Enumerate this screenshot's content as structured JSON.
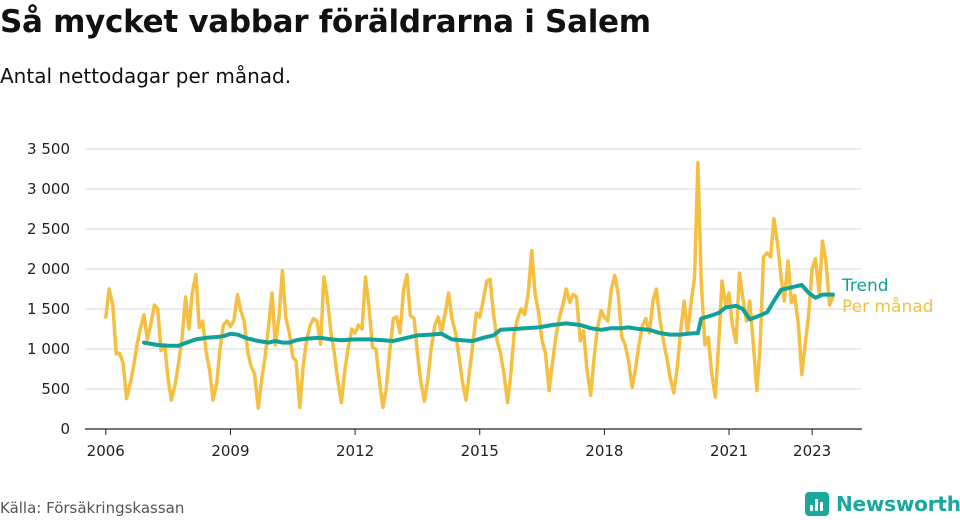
{
  "title": "Så mycket vabbar föräldrarna i Salem",
  "subtitle": "Antal nettodagar per månad.",
  "source": "Källa: Försäkringskassan",
  "brand": {
    "name": "Newsworthy",
    "icon": "newsworthy-logo-icon",
    "color": "#1aa79c"
  },
  "chart_data": {
    "type": "line",
    "title": "Så mycket vabbar föräldrarna i Salem",
    "subtitle": "Antal nettodagar per månad.",
    "xlabel": "",
    "ylabel": "",
    "x_range": [
      2005.5,
      2024.2
    ],
    "ylim": [
      0,
      3500
    ],
    "y_ticks": [
      0,
      500,
      1000,
      1500,
      2000,
      2500,
      3000,
      3500
    ],
    "y_tick_labels": [
      "0",
      "500",
      "1 000",
      "1 500",
      "2 000",
      "2 500",
      "3 000",
      "3 500"
    ],
    "x_ticks": [
      2006,
      2009,
      2012,
      2015,
      2018,
      2021,
      2023
    ],
    "x_tick_labels": [
      "2006",
      "2009",
      "2012",
      "2015",
      "2018",
      "2021",
      "2023"
    ],
    "grid": true,
    "legend": "right, labels at line ends",
    "series": [
      {
        "name": "Per månad",
        "color": "#f5c042",
        "points": [
          [
            2006.0,
            1400
          ],
          [
            2006.08,
            1750
          ],
          [
            2006.17,
            1550
          ],
          [
            2006.25,
            940
          ],
          [
            2006.33,
            950
          ],
          [
            2006.42,
            820
          ],
          [
            2006.5,
            380
          ],
          [
            2006.58,
            550
          ],
          [
            2006.67,
            780
          ],
          [
            2006.75,
            1050
          ],
          [
            2006.83,
            1250
          ],
          [
            2006.92,
            1430
          ],
          [
            2007.0,
            1120
          ],
          [
            2007.08,
            1300
          ],
          [
            2007.17,
            1550
          ],
          [
            2007.25,
            1500
          ],
          [
            2007.33,
            980
          ],
          [
            2007.42,
            1050
          ],
          [
            2007.5,
            620
          ],
          [
            2007.58,
            360
          ],
          [
            2007.67,
            560
          ],
          [
            2007.75,
            820
          ],
          [
            2007.83,
            1100
          ],
          [
            2007.92,
            1650
          ],
          [
            2008.0,
            1250
          ],
          [
            2008.08,
            1700
          ],
          [
            2008.17,
            1930
          ],
          [
            2008.25,
            1270
          ],
          [
            2008.33,
            1350
          ],
          [
            2008.42,
            950
          ],
          [
            2008.5,
            730
          ],
          [
            2008.58,
            360
          ],
          [
            2008.67,
            570
          ],
          [
            2008.75,
            1000
          ],
          [
            2008.83,
            1300
          ],
          [
            2008.92,
            1350
          ],
          [
            2009.0,
            1280
          ],
          [
            2009.08,
            1350
          ],
          [
            2009.17,
            1680
          ],
          [
            2009.25,
            1480
          ],
          [
            2009.33,
            1350
          ],
          [
            2009.42,
            950
          ],
          [
            2009.5,
            780
          ],
          [
            2009.58,
            690
          ],
          [
            2009.67,
            260
          ],
          [
            2009.75,
            620
          ],
          [
            2009.83,
            880
          ],
          [
            2009.92,
            1300
          ],
          [
            2010.0,
            1700
          ],
          [
            2010.08,
            1050
          ],
          [
            2010.17,
            1400
          ],
          [
            2010.25,
            1980
          ],
          [
            2010.33,
            1400
          ],
          [
            2010.42,
            1200
          ],
          [
            2010.5,
            900
          ],
          [
            2010.58,
            850
          ],
          [
            2010.67,
            270
          ],
          [
            2010.75,
            780
          ],
          [
            2010.83,
            1100
          ],
          [
            2010.92,
            1300
          ],
          [
            2011.0,
            1380
          ],
          [
            2011.08,
            1350
          ],
          [
            2011.17,
            1060
          ],
          [
            2011.25,
            1900
          ],
          [
            2011.33,
            1650
          ],
          [
            2011.42,
            1200
          ],
          [
            2011.5,
            950
          ],
          [
            2011.58,
            620
          ],
          [
            2011.67,
            330
          ],
          [
            2011.75,
            720
          ],
          [
            2011.83,
            1000
          ],
          [
            2011.92,
            1250
          ],
          [
            2012.0,
            1200
          ],
          [
            2012.08,
            1300
          ],
          [
            2012.17,
            1250
          ],
          [
            2012.25,
            1900
          ],
          [
            2012.33,
            1550
          ],
          [
            2012.42,
            1020
          ],
          [
            2012.5,
            1000
          ],
          [
            2012.58,
            620
          ],
          [
            2012.67,
            270
          ],
          [
            2012.75,
            500
          ],
          [
            2012.83,
            950
          ],
          [
            2012.92,
            1380
          ],
          [
            2013.0,
            1400
          ],
          [
            2013.08,
            1200
          ],
          [
            2013.17,
            1750
          ],
          [
            2013.25,
            1930
          ],
          [
            2013.33,
            1420
          ],
          [
            2013.42,
            1380
          ],
          [
            2013.5,
            950
          ],
          [
            2013.58,
            600
          ],
          [
            2013.67,
            350
          ],
          [
            2013.75,
            620
          ],
          [
            2013.83,
            1000
          ],
          [
            2013.92,
            1300
          ],
          [
            2014.0,
            1400
          ],
          [
            2014.08,
            1200
          ],
          [
            2014.17,
            1450
          ],
          [
            2014.25,
            1700
          ],
          [
            2014.33,
            1380
          ],
          [
            2014.42,
            1200
          ],
          [
            2014.5,
            900
          ],
          [
            2014.58,
            600
          ],
          [
            2014.67,
            360
          ],
          [
            2014.75,
            700
          ],
          [
            2014.83,
            1050
          ],
          [
            2014.92,
            1450
          ],
          [
            2015.0,
            1400
          ],
          [
            2015.08,
            1600
          ],
          [
            2015.17,
            1850
          ],
          [
            2015.25,
            1870
          ],
          [
            2015.33,
            1450
          ],
          [
            2015.42,
            1100
          ],
          [
            2015.5,
            950
          ],
          [
            2015.58,
            700
          ],
          [
            2015.67,
            330
          ],
          [
            2015.75,
            700
          ],
          [
            2015.83,
            1200
          ],
          [
            2015.92,
            1400
          ],
          [
            2016.0,
            1500
          ],
          [
            2016.08,
            1430
          ],
          [
            2016.17,
            1700
          ],
          [
            2016.25,
            2230
          ],
          [
            2016.33,
            1700
          ],
          [
            2016.42,
            1450
          ],
          [
            2016.5,
            1100
          ],
          [
            2016.58,
            950
          ],
          [
            2016.67,
            480
          ],
          [
            2016.75,
            820
          ],
          [
            2016.83,
            1150
          ],
          [
            2016.92,
            1400
          ],
          [
            2017.0,
            1550
          ],
          [
            2017.08,
            1750
          ],
          [
            2017.17,
            1580
          ],
          [
            2017.25,
            1680
          ],
          [
            2017.33,
            1650
          ],
          [
            2017.42,
            1100
          ],
          [
            2017.5,
            1230
          ],
          [
            2017.58,
            750
          ],
          [
            2017.67,
            420
          ],
          [
            2017.75,
            880
          ],
          [
            2017.83,
            1250
          ],
          [
            2017.92,
            1480
          ],
          [
            2018.0,
            1400
          ],
          [
            2018.08,
            1350
          ],
          [
            2018.17,
            1750
          ],
          [
            2018.25,
            1920
          ],
          [
            2018.33,
            1700
          ],
          [
            2018.42,
            1150
          ],
          [
            2018.5,
            1050
          ],
          [
            2018.58,
            850
          ],
          [
            2018.67,
            520
          ],
          [
            2018.75,
            750
          ],
          [
            2018.83,
            1050
          ],
          [
            2018.92,
            1300
          ],
          [
            2019.0,
            1380
          ],
          [
            2019.08,
            1200
          ],
          [
            2019.17,
            1600
          ],
          [
            2019.25,
            1750
          ],
          [
            2019.33,
            1400
          ],
          [
            2019.42,
            1100
          ],
          [
            2019.5,
            900
          ],
          [
            2019.58,
            650
          ],
          [
            2019.67,
            450
          ],
          [
            2019.75,
            750
          ],
          [
            2019.83,
            1200
          ],
          [
            2019.92,
            1600
          ],
          [
            2020.0,
            1200
          ],
          [
            2020.08,
            1550
          ],
          [
            2020.17,
            1900
          ],
          [
            2020.25,
            3330
          ],
          [
            2020.33,
            1850
          ],
          [
            2020.42,
            1050
          ],
          [
            2020.5,
            1150
          ],
          [
            2020.58,
            700
          ],
          [
            2020.67,
            400
          ],
          [
            2020.75,
            1050
          ],
          [
            2020.83,
            1850
          ],
          [
            2020.92,
            1550
          ],
          [
            2021.0,
            1700
          ],
          [
            2021.08,
            1300
          ],
          [
            2021.17,
            1080
          ],
          [
            2021.25,
            1950
          ],
          [
            2021.33,
            1650
          ],
          [
            2021.42,
            1350
          ],
          [
            2021.5,
            1600
          ],
          [
            2021.58,
            1100
          ],
          [
            2021.67,
            480
          ],
          [
            2021.75,
            1050
          ],
          [
            2021.83,
            2150
          ],
          [
            2021.92,
            2200
          ],
          [
            2022.0,
            2150
          ],
          [
            2022.08,
            2630
          ],
          [
            2022.17,
            2300
          ],
          [
            2022.25,
            1900
          ],
          [
            2022.33,
            1600
          ],
          [
            2022.42,
            2100
          ],
          [
            2022.5,
            1580
          ],
          [
            2022.58,
            1670
          ],
          [
            2022.67,
            1300
          ],
          [
            2022.75,
            680
          ],
          [
            2022.83,
            1050
          ],
          [
            2022.92,
            1450
          ],
          [
            2023.0,
            2000
          ],
          [
            2023.08,
            2130
          ],
          [
            2023.17,
            1700
          ],
          [
            2023.25,
            2350
          ],
          [
            2023.33,
            2100
          ],
          [
            2023.42,
            1550
          ],
          [
            2023.5,
            1650
          ]
        ]
      },
      {
        "name": "Trend",
        "color": "#12a198",
        "points": [
          [
            2006.92,
            1080
          ],
          [
            2007.25,
            1050
          ],
          [
            2007.5,
            1040
          ],
          [
            2007.75,
            1040
          ],
          [
            2008.0,
            1090
          ],
          [
            2008.17,
            1120
          ],
          [
            2008.42,
            1140
          ],
          [
            2008.67,
            1150
          ],
          [
            2008.83,
            1160
          ],
          [
            2009.0,
            1190
          ],
          [
            2009.17,
            1180
          ],
          [
            2009.42,
            1130
          ],
          [
            2009.67,
            1100
          ],
          [
            2009.92,
            1080
          ],
          [
            2010.08,
            1100
          ],
          [
            2010.25,
            1080
          ],
          [
            2010.42,
            1080
          ],
          [
            2010.58,
            1110
          ],
          [
            2010.83,
            1130
          ],
          [
            2011.17,
            1140
          ],
          [
            2011.42,
            1120
          ],
          [
            2011.67,
            1110
          ],
          [
            2012.0,
            1120
          ],
          [
            2012.33,
            1120
          ],
          [
            2012.67,
            1110
          ],
          [
            2012.92,
            1100
          ],
          [
            2013.17,
            1130
          ],
          [
            2013.5,
            1170
          ],
          [
            2013.83,
            1180
          ],
          [
            2014.08,
            1190
          ],
          [
            2014.33,
            1120
          ],
          [
            2014.58,
            1110
          ],
          [
            2014.83,
            1100
          ],
          [
            2015.08,
            1140
          ],
          [
            2015.33,
            1170
          ],
          [
            2015.5,
            1240
          ],
          [
            2015.83,
            1250
          ],
          [
            2016.08,
            1260
          ],
          [
            2016.42,
            1270
          ],
          [
            2016.75,
            1300
          ],
          [
            2017.08,
            1320
          ],
          [
            2017.42,
            1300
          ],
          [
            2017.67,
            1260
          ],
          [
            2017.92,
            1240
          ],
          [
            2018.17,
            1260
          ],
          [
            2018.42,
            1260
          ],
          [
            2018.58,
            1270
          ],
          [
            2018.83,
            1250
          ],
          [
            2019.08,
            1240
          ],
          [
            2019.33,
            1200
          ],
          [
            2019.58,
            1180
          ],
          [
            2019.83,
            1180
          ],
          [
            2020.0,
            1190
          ],
          [
            2020.25,
            1200
          ],
          [
            2020.33,
            1380
          ],
          [
            2020.58,
            1420
          ],
          [
            2020.75,
            1450
          ],
          [
            2020.92,
            1520
          ],
          [
            2021.17,
            1540
          ],
          [
            2021.33,
            1500
          ],
          [
            2021.5,
            1370
          ],
          [
            2021.75,
            1420
          ],
          [
            2021.92,
            1460
          ],
          [
            2022.08,
            1600
          ],
          [
            2022.25,
            1740
          ],
          [
            2022.42,
            1760
          ],
          [
            2022.58,
            1780
          ],
          [
            2022.75,
            1800
          ],
          [
            2022.92,
            1700
          ],
          [
            2023.08,
            1640
          ],
          [
            2023.25,
            1680
          ],
          [
            2023.5,
            1680
          ]
        ]
      }
    ]
  }
}
